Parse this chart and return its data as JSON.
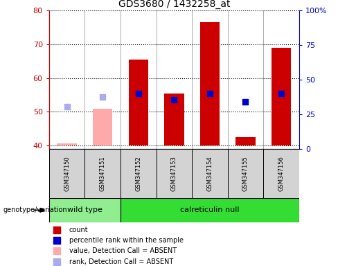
{
  "title": "GDS3680 / 1432258_at",
  "samples": [
    "GSM347150",
    "GSM347151",
    "GSM347152",
    "GSM347153",
    "GSM347154",
    "GSM347155",
    "GSM347156"
  ],
  "groups": {
    "wild type": [
      0,
      1
    ],
    "calreticulin null": [
      2,
      3,
      4,
      5,
      6
    ]
  },
  "ylim_left": [
    39,
    80
  ],
  "ylim_right": [
    0,
    100
  ],
  "yticks_left": [
    40,
    50,
    60,
    70,
    80
  ],
  "ytick_labels_left": [
    "40",
    "50",
    "60",
    "70",
    "80"
  ],
  "yticks_right": [
    0,
    25,
    50,
    75,
    100
  ],
  "ytick_labels_right": [
    "0",
    "25",
    "50",
    "75",
    "100%"
  ],
  "bar_baseline": 40,
  "red_bar_tops": [
    null,
    null,
    65.5,
    55.5,
    76.5,
    42.5,
    69.0
  ],
  "pink_bar_tops": [
    40.7,
    51.0,
    null,
    null,
    null,
    null,
    null
  ],
  "blue_square_y": [
    null,
    null,
    55.5,
    53.5,
    55.5,
    53.0,
    55.5
  ],
  "light_blue_square_y": [
    51.5,
    54.5,
    null,
    null,
    null,
    null,
    null
  ],
  "blue_square_size": 30,
  "light_blue_square_size": 30,
  "bar_width": 0.55,
  "colors": {
    "red_bar": "#cc0000",
    "pink_bar": "#ffaaaa",
    "blue_square": "#0000cc",
    "light_blue_square": "#aaaaee",
    "left_axis_color": "#cc0000",
    "right_axis_color": "#0000cc",
    "sample_label_bg": "#d3d3d3",
    "wildtype_bg": "#90ee90",
    "calreticulin_bg": "#33dd33"
  },
  "legend_items": [
    {
      "label": "count",
      "color": "#cc0000"
    },
    {
      "label": "percentile rank within the sample",
      "color": "#0000cc"
    },
    {
      "label": "value, Detection Call = ABSENT",
      "color": "#ffaaaa"
    },
    {
      "label": "rank, Detection Call = ABSENT",
      "color": "#aaaaee"
    }
  ],
  "genotype_label": "genotype/variation"
}
